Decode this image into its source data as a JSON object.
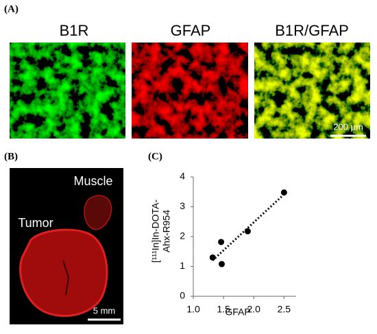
{
  "panel_a": {
    "label": "(A)",
    "titles": [
      "B1R",
      "GFAP",
      "B1R/GFAP"
    ],
    "scale_bar": "200 µm"
  },
  "panel_b": {
    "label": "(B)",
    "muscle": "Muscle",
    "tumor": "Tumor",
    "scale_bar": "5 mm"
  },
  "panel_c": {
    "label": "(C)"
  },
  "chart_data": {
    "type": "scatter",
    "x_label": "GFAP",
    "y_label": [
      "[¹¹¹In]In-DOTA-",
      "Ahx-R954"
    ],
    "x": [
      1.32,
      1.46,
      1.47,
      1.9,
      2.5
    ],
    "values": [
      1.3,
      1.82,
      1.08,
      2.18,
      3.48
    ],
    "color": "#000000",
    "xlim": [
      1.0,
      2.7
    ],
    "ylim": [
      0,
      4
    ],
    "xticks": [
      {
        "value": 1,
        "label": "1.0"
      },
      1.5,
      {
        "value": 2,
        "label": "2.0"
      },
      2.5
    ],
    "yticks": [
      0,
      1,
      2,
      3,
      4
    ],
    "trendline": true,
    "grid": false
  }
}
